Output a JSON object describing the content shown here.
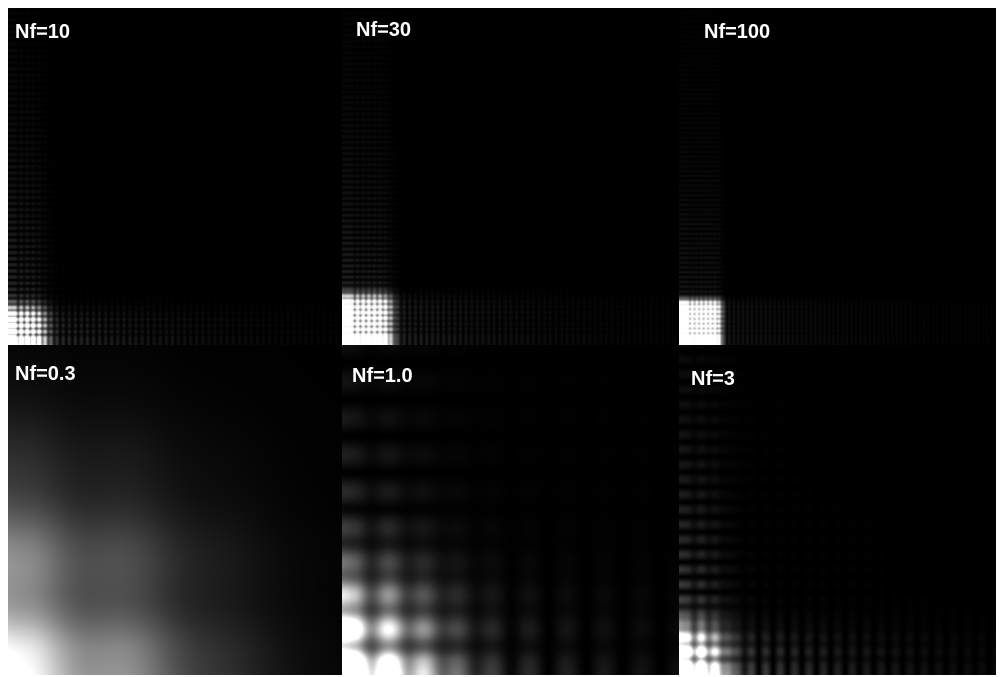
{
  "panels": [
    {
      "label": "Nf=10"
    },
    {
      "label": "Nf=30"
    },
    {
      "label": "Nf=100"
    },
    {
      "label": "Nf=0.3"
    },
    {
      "label": "Nf=1.0"
    },
    {
      "label": "Nf=3"
    }
  ]
}
